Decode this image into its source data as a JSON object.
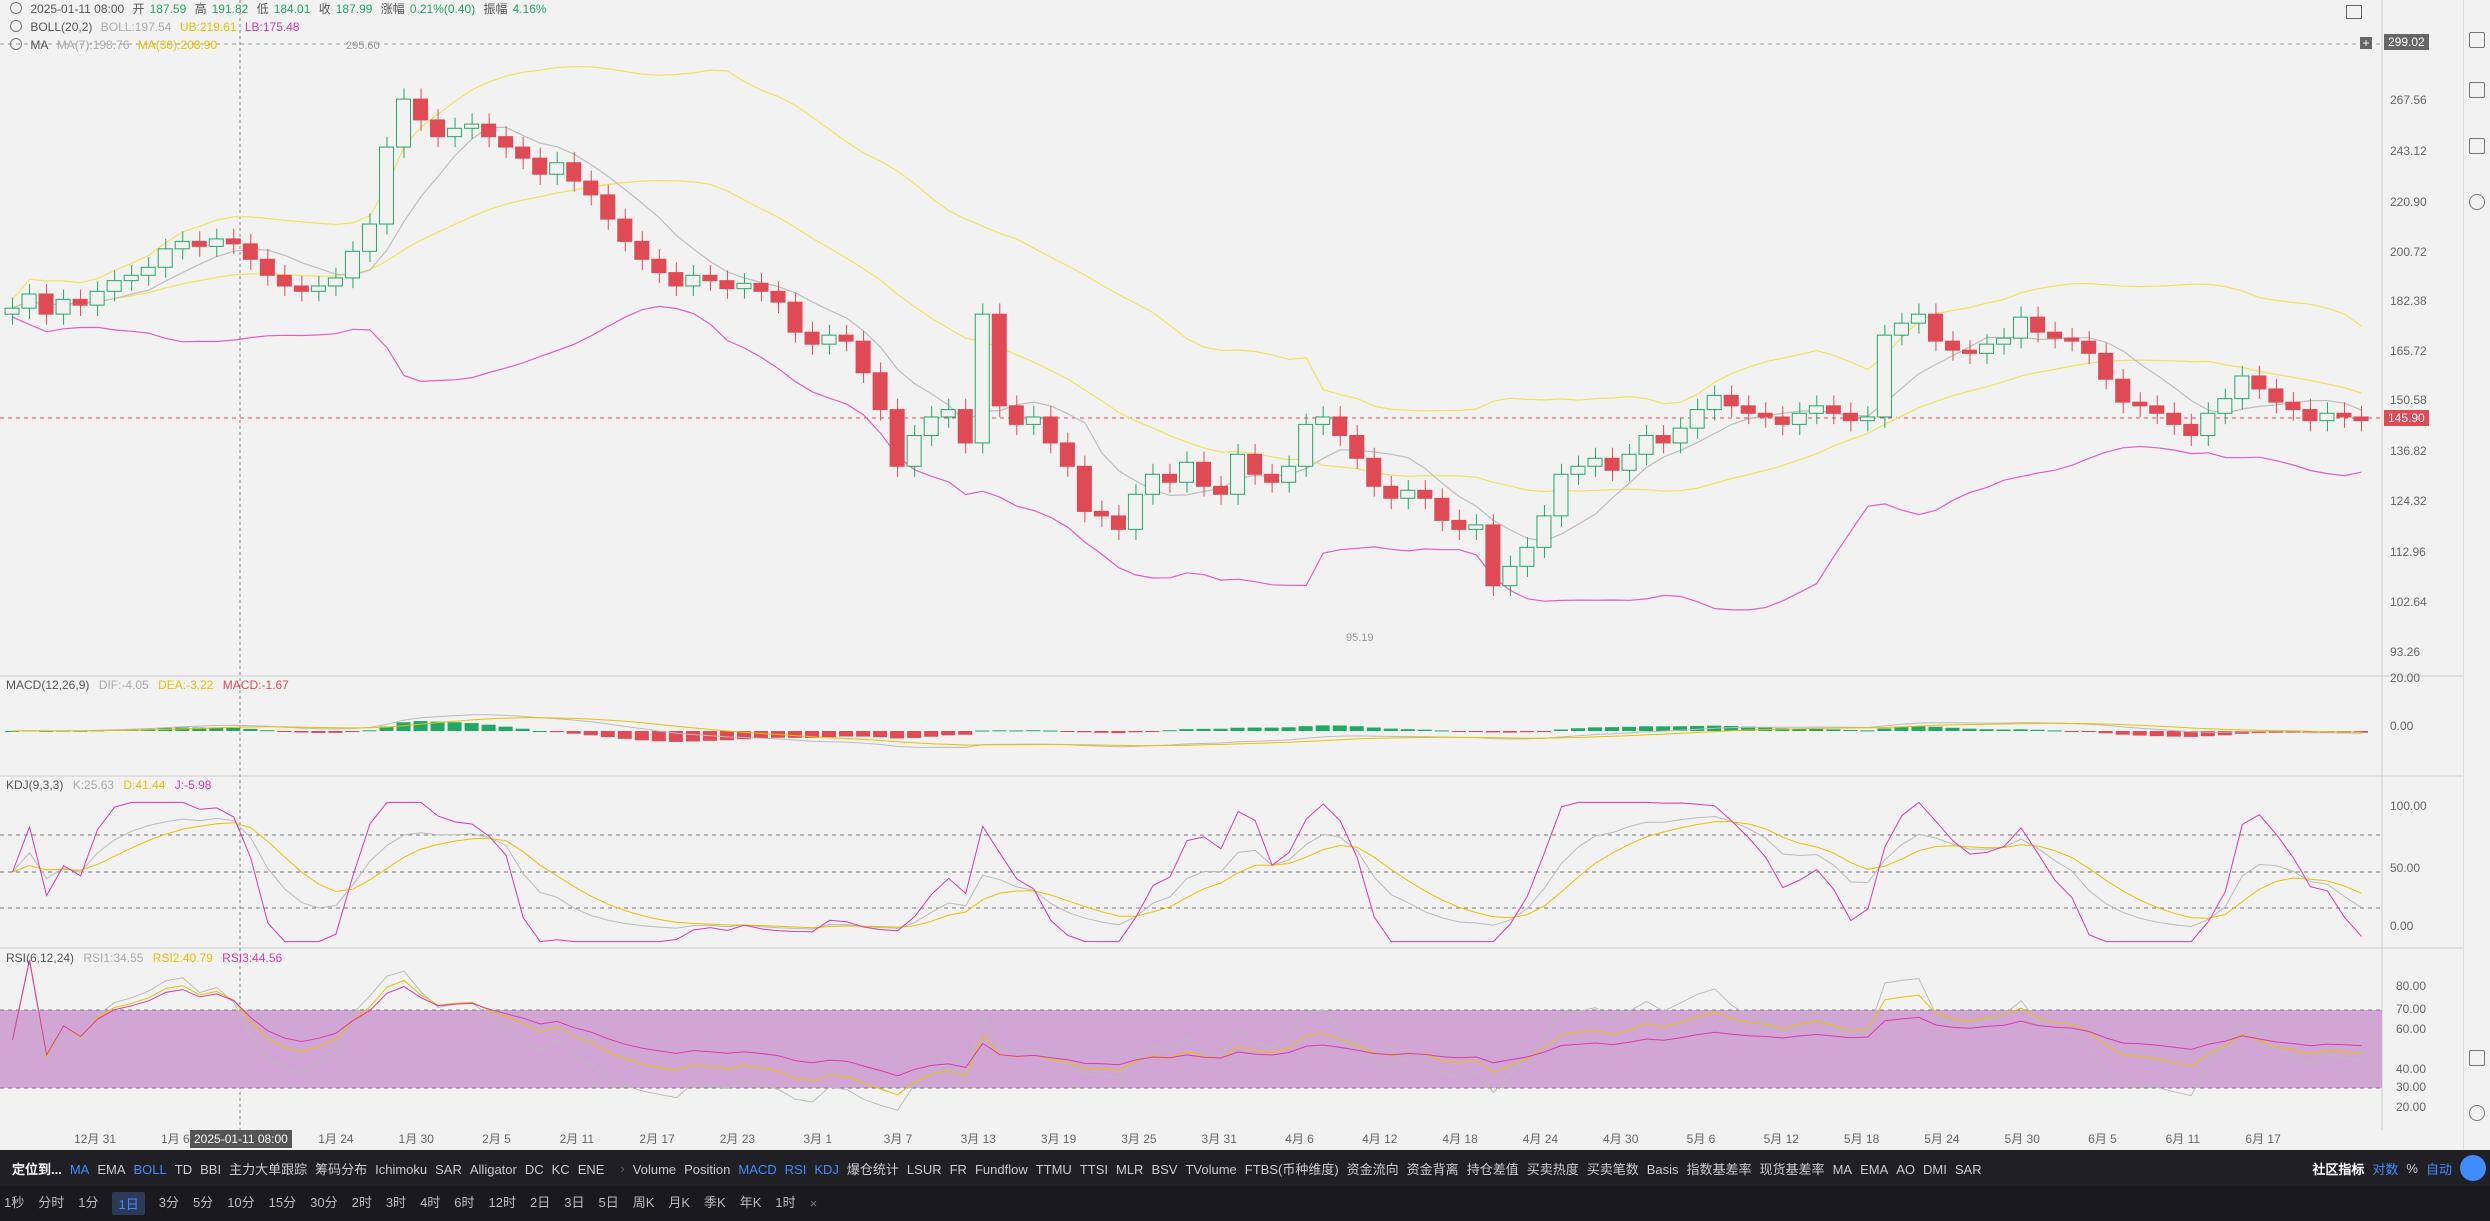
{
  "info_bar": {
    "date": "2025-01-11 08:00",
    "open_label": "开",
    "open": "187.59",
    "high_label": "高",
    "high": "191.82",
    "low_label": "低",
    "low": "184.01",
    "close_label": "收",
    "close": "187.99",
    "change_label": "涨幅",
    "change": "0.21%(0.40)",
    "amp_label": "振幅",
    "amp": "4.16%"
  },
  "boll_legend": {
    "name": "BOLL(20,2)",
    "boll": "BOLL:197.54",
    "ub": "UB:219.61",
    "lb": "LB:175.48"
  },
  "ma_legend": {
    "name": "MA",
    "ma7": "MA(7):198.76",
    "ma30": "MA(30):208.90"
  },
  "macd_legend": {
    "name": "MACD(12,26,9)",
    "dif": "DIF:-4.05",
    "dea": "DEA:-3.22",
    "macd": "MACD:-1.67"
  },
  "kdj_legend": {
    "name": "KDJ(9,3,3)",
    "k": "K:25.63",
    "d": "D:41.44",
    "j": "J:-5.98"
  },
  "rsi_legend": {
    "name": "RSI(6,12,24)",
    "rsi1": "RSI1:34.55",
    "rsi2": "RSI2:40.79",
    "rsi3": "RSI3:44.56"
  },
  "price_axis": [
    "267.56",
    "243.12",
    "220.90",
    "200.72",
    "182.38",
    "165.72",
    "150.58",
    "136.82",
    "124.32",
    "112.96",
    "102.64",
    "93.26"
  ],
  "price_top_tag": "299.02",
  "current_price_tag": "145.90",
  "max_label": "295.60",
  "min_label": "95.19",
  "macd_axis": [
    "20.00",
    "0.00"
  ],
  "kdj_axis": [
    "100.00",
    "50.00",
    "0.00"
  ],
  "rsi_axis": [
    "80.00",
    "70.00",
    "60.00",
    "40.00",
    "30.00",
    "20.00"
  ],
  "date_axis": [
    "12月 31",
    "1月 6",
    "1月 18",
    "1月 24",
    "1月 30",
    "2月 5",
    "2月 11",
    "2月 17",
    "2月 23",
    "3月 1",
    "3月 7",
    "3月 13",
    "3月 19",
    "3月 25",
    "3月 31",
    "4月 6",
    "4月 12",
    "4月 18",
    "4月 24",
    "4月 30",
    "5月 6",
    "5月 12",
    "5月 18",
    "5月 24",
    "5月 30",
    "6月 5",
    "6月 11",
    "6月 17"
  ],
  "crosshair_date": "2025-01-11 08:00",
  "toolbar": {
    "locate": "定位到...",
    "main_indicators": [
      "MA",
      "EMA",
      "BOLL",
      "TD",
      "BBI",
      "主力大单跟踪",
      "筹码分布",
      "Ichimoku",
      "SAR",
      "Alligator",
      "DC",
      "KC",
      "ENE"
    ],
    "sub_indicators": [
      "Volume",
      "Position",
      "MACD",
      "RSI",
      "KDJ",
      "爆仓统计",
      "LSUR",
      "FR",
      "Fundflow",
      "TTMU",
      "TTSI",
      "MLR",
      "BSV",
      "TVolume",
      "FTBS(币种维度)",
      "资金流向",
      "资金背离",
      "持仓差值",
      "买卖热度",
      "买卖笔数",
      "Basis",
      "指数基差率",
      "现货基差率",
      "MA",
      "EMA",
      "AO",
      "DMI",
      "SAR"
    ],
    "active": [
      "MA",
      "BOLL",
      "MACD",
      "RSI",
      "KDJ"
    ],
    "community": "社区指标",
    "log": "对数",
    "percent": "%",
    "auto": "自动"
  },
  "timeframes": [
    "1秒",
    "分时",
    "1分",
    "1日",
    "3分",
    "5分",
    "10分",
    "15分",
    "30分",
    "2时",
    "3时",
    "4时",
    "6时",
    "12时",
    "2日",
    "3日",
    "5日",
    "周K",
    "月K",
    "季K",
    "年K",
    "1时"
  ],
  "active_timeframe": "1日",
  "colors": {
    "up": "#22a866",
    "down": "#e04a55",
    "boll_band": "#f2e25a",
    "lb_line": "#e060c0",
    "ma": "#bdbdbd"
  },
  "chart_data": {
    "type": "candlestick",
    "closes": [
      180,
      185,
      178,
      183,
      181,
      186,
      190,
      192,
      195,
      202,
      205,
      203,
      206,
      204,
      198,
      192,
      188,
      186,
      188,
      191,
      201,
      212,
      245,
      268,
      258,
      250,
      254,
      256,
      250,
      245,
      240,
      233,
      238,
      230,
      224,
      214,
      205,
      198,
      193,
      188,
      192,
      190,
      187,
      189,
      186,
      182,
      172,
      168,
      171,
      169,
      159,
      148,
      133,
      141,
      146,
      148,
      139,
      178,
      149,
      144,
      146,
      139,
      133,
      122,
      121,
      118,
      126,
      131,
      129,
      134,
      128,
      126,
      136,
      131,
      129,
      133,
      144,
      146,
      141,
      135,
      128,
      125,
      127,
      125,
      120,
      118,
      119,
      106,
      110,
      114,
      121,
      131,
      133,
      135,
      132,
      136,
      141,
      139,
      143,
      148,
      152,
      149,
      147,
      146,
      144,
      147,
      149,
      147,
      145,
      146,
      171,
      175,
      178,
      169,
      166,
      165,
      168,
      170,
      177,
      172,
      170,
      169,
      165,
      157,
      150,
      149,
      147,
      144,
      141,
      147,
      151,
      158,
      154,
      150,
      148,
      145,
      147,
      146,
      145
    ]
  }
}
